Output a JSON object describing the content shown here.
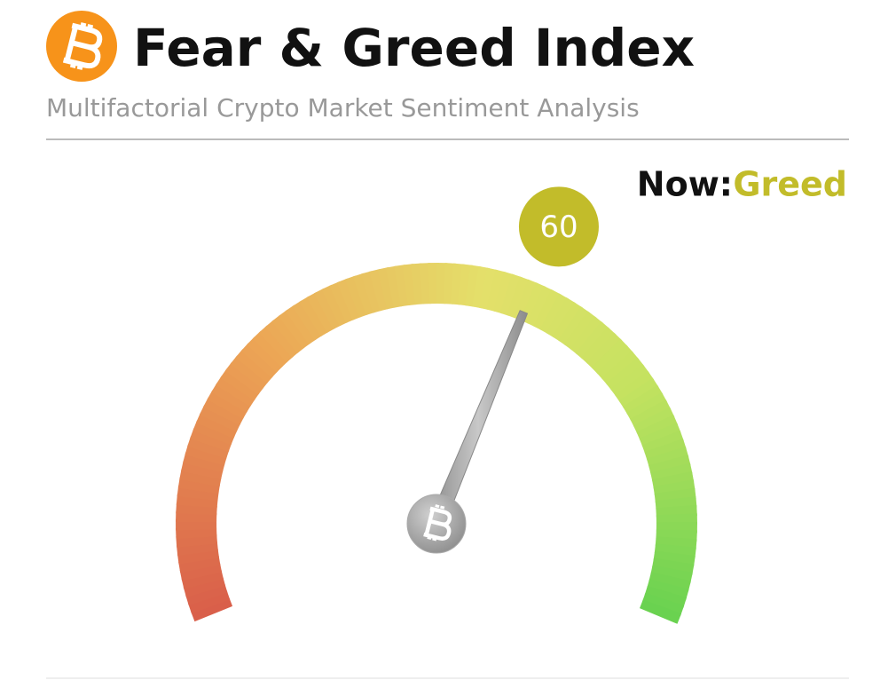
{
  "header": {
    "title": "Fear & Greed Index",
    "subtitle": "Multifactorial Crypto Market Sentiment Analysis"
  },
  "chart_data": {
    "type": "gauge",
    "value": 60,
    "range": [
      0,
      100
    ],
    "status_label": "Now:",
    "status": "Greed",
    "status_color": "#c2bc2a"
  }
}
